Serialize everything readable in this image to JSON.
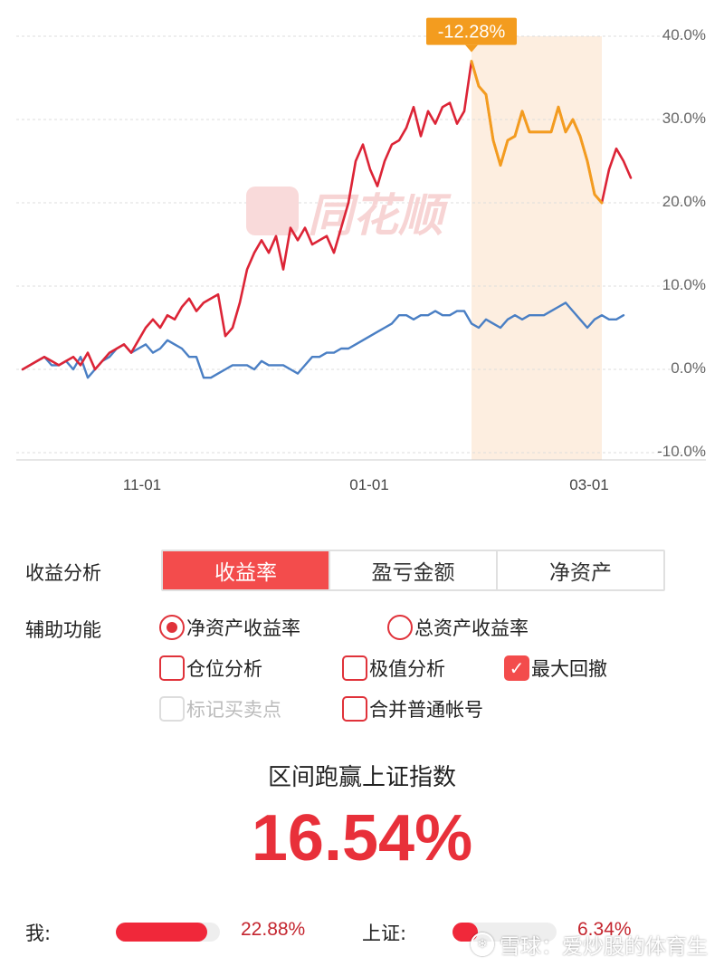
{
  "chart_data": {
    "type": "line",
    "x_ticks": [
      "11-01",
      "01-01",
      "03-01"
    ],
    "y_ticks": [
      "40.0%",
      "30.0%",
      "20.0%",
      "10.0%",
      "0.0%",
      "-10.0%"
    ],
    "ylim": [
      -10,
      40
    ],
    "grid": true,
    "max_drawdown_label": "-12.28%",
    "colors": {
      "mine": "#dc2436",
      "index": "#4a7fc4",
      "drawdown": "#f39c1f",
      "drawdown_band": "#fdeee0"
    },
    "series": [
      {
        "key": "mine",
        "values": [
          0,
          0.5,
          1,
          1.5,
          1,
          0.5,
          1,
          1.5,
          0.5,
          2,
          0,
          1,
          2,
          2.5,
          3,
          2,
          3.5,
          5,
          6,
          5,
          6.5,
          6,
          7.5,
          8.5,
          7,
          8,
          8.5,
          9,
          4,
          5,
          8,
          12,
          14,
          15.5,
          14,
          16,
          12,
          17,
          15.5,
          17,
          15,
          15.5,
          16,
          14,
          17,
          20,
          25,
          27,
          24,
          22,
          25,
          27,
          27.5,
          29,
          31.5,
          28,
          31,
          29.5,
          31.5,
          32,
          29.5,
          31,
          37,
          34,
          33,
          27.5,
          24.5,
          27.5,
          28,
          31,
          28.5,
          28.5,
          28.5,
          28.5,
          31.5,
          28.5,
          30,
          28,
          25,
          21,
          20,
          24,
          26.5,
          25,
          23
        ]
      },
      {
        "key": "index",
        "values": [
          0,
          0.5,
          1,
          1.5,
          0.5,
          0.5,
          1,
          0,
          1.5,
          -1,
          0,
          1,
          1.5,
          2.5,
          3,
          2,
          2.5,
          3,
          2,
          2.5,
          3.5,
          3,
          2.5,
          1.5,
          1.5,
          -1,
          -1,
          -0.5,
          0,
          0.5,
          0.5,
          0.5,
          0,
          1,
          0.5,
          0.5,
          0.5,
          0,
          -0.5,
          0.5,
          1.5,
          1.5,
          2,
          2,
          2.5,
          2.5,
          3,
          3.5,
          4,
          4.5,
          5,
          5.5,
          6.5,
          6.5,
          6,
          6.5,
          6.5,
          7,
          6.5,
          6.5,
          7,
          7,
          5.5,
          5,
          6,
          5.5,
          5,
          6,
          6.5,
          6,
          6.5,
          6.5,
          6.5,
          7,
          7.5,
          8,
          7,
          6,
          5,
          6,
          6.5,
          6,
          6,
          6.5
        ]
      }
    ],
    "drawdown_segment": {
      "start_index": 62,
      "end_index": 80,
      "values": [
        37,
        34,
        33,
        27.5,
        24.5,
        27.5,
        28,
        31,
        28.5,
        28.5,
        28.5,
        28.5,
        31.5,
        28.5,
        30,
        28,
        25,
        21,
        20
      ]
    }
  },
  "watermark_brand": "同花顺",
  "analysis": {
    "label": "收益分析",
    "tabs": [
      {
        "label": "收益率",
        "active": true
      },
      {
        "label": "盈亏金额",
        "active": false
      },
      {
        "label": "净资产",
        "active": false
      }
    ]
  },
  "aux": {
    "label": "辅助功能",
    "radios": [
      {
        "label": "净资产收益率",
        "checked": true
      },
      {
        "label": "总资产收益率",
        "checked": false
      }
    ],
    "checks": [
      {
        "label": "仓位分析",
        "checked": false
      },
      {
        "label": "极值分析",
        "checked": false
      },
      {
        "label": "最大回撤",
        "checked": true
      },
      {
        "label": "标记买卖点",
        "checked": false,
        "disabled": true
      },
      {
        "label": "合并普通帐号",
        "checked": false
      }
    ]
  },
  "summary": {
    "title": "区间跑赢上证指数",
    "value": "16.54%"
  },
  "compare": {
    "me_label": "我:",
    "me_value": "22.88%",
    "me_fraction": 0.88,
    "index_label": "上证:",
    "index_value": "6.34%",
    "index_fraction": 0.24
  },
  "footer_watermark": "雪球：爱炒股的体育生"
}
